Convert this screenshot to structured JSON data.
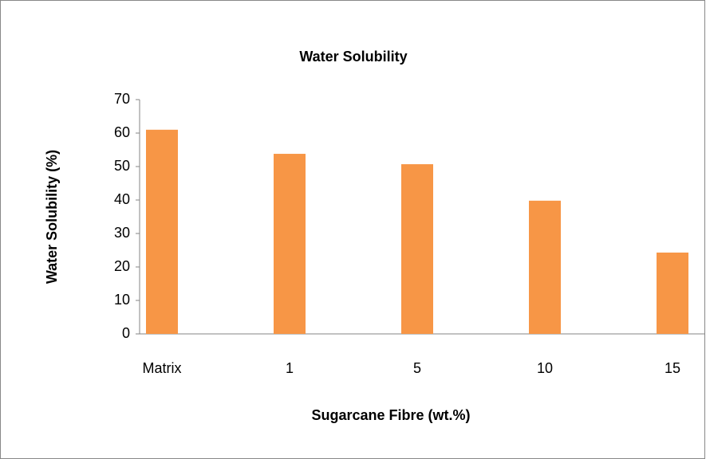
{
  "chart_data": {
    "type": "bar",
    "title": "Water Solubility",
    "x_label": "Sugarcane Fibre (wt.%)",
    "y_label": "Water Solubility (%)",
    "categories": [
      "Matrix",
      "1",
      "5",
      "10",
      "15"
    ],
    "values": [
      61,
      53.8,
      50.7,
      39.8,
      24.3
    ],
    "color": "#f79646",
    "ylim": [
      0,
      70
    ],
    "yticks": [
      0,
      10,
      20,
      30,
      40,
      50,
      60,
      70
    ],
    "grid": false
  }
}
